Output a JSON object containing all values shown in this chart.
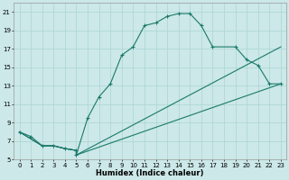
{
  "xlabel": "Humidex (Indice chaleur)",
  "bg_color": "#cce8e8",
  "grid_color": "#aad4d4",
  "line_color": "#1a7a6a",
  "xlim": [
    -0.5,
    23.5
  ],
  "ylim": [
    5,
    22
  ],
  "xticks": [
    0,
    1,
    2,
    3,
    4,
    5,
    6,
    7,
    8,
    9,
    10,
    11,
    12,
    13,
    14,
    15,
    16,
    17,
    18,
    19,
    20,
    21,
    22,
    23
  ],
  "yticks": [
    5,
    7,
    9,
    11,
    13,
    15,
    17,
    19,
    21
  ],
  "curve_x": [
    0,
    1,
    2,
    3,
    4,
    5,
    5,
    6,
    7,
    8,
    9,
    10,
    11,
    12,
    13,
    14,
    15,
    16,
    17,
    19,
    20,
    21,
    22,
    23
  ],
  "curve_y": [
    8,
    7.5,
    6.5,
    6.5,
    6.2,
    6.0,
    5.5,
    9.5,
    11.8,
    13.2,
    16.3,
    17.2,
    19.5,
    19.8,
    20.5,
    20.8,
    20.8,
    19.5,
    17.2,
    17.2,
    15.8,
    15.2,
    13.2,
    13.2
  ],
  "line_lo_x": [
    0,
    2,
    3,
    4,
    5,
    5,
    23
  ],
  "line_lo_y": [
    8,
    6.5,
    6.5,
    6.2,
    6.0,
    5.5,
    13.2
  ],
  "line_hi_x": [
    0,
    2,
    3,
    4,
    5,
    5,
    23
  ],
  "line_hi_y": [
    8,
    6.5,
    6.5,
    6.2,
    6.0,
    5.5,
    17.2
  ]
}
